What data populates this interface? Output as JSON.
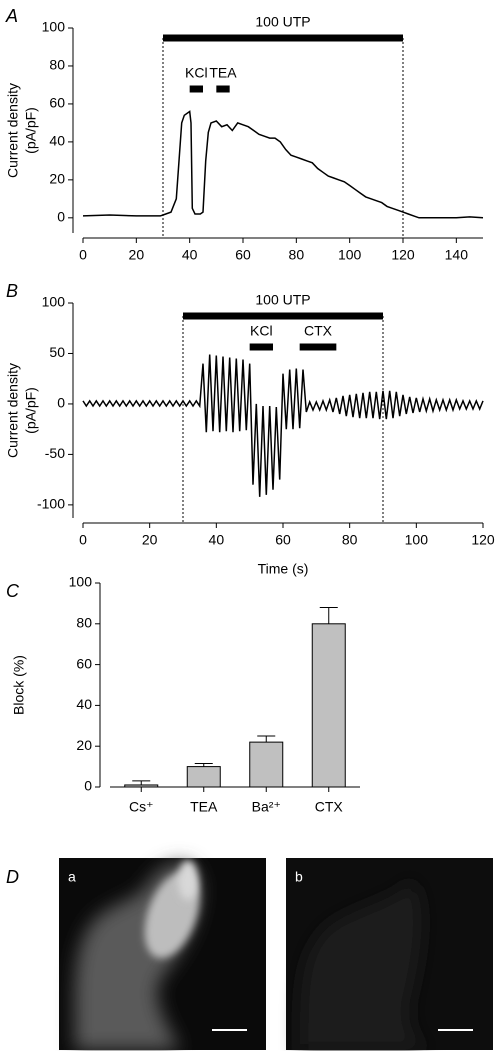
{
  "chart_data": [
    {
      "type": "line",
      "panel_label": "A",
      "ylabel": [
        "Current density",
        "(pA/pF)"
      ],
      "x": [
        0,
        10,
        20,
        29,
        30,
        33,
        35,
        36,
        37,
        38,
        40,
        40.5,
        41,
        42,
        44,
        45,
        46,
        47,
        48,
        50,
        52,
        54,
        56,
        58,
        60,
        62,
        64,
        66,
        68,
        70,
        72,
        74,
        76,
        78,
        80,
        82,
        84,
        86,
        88,
        90,
        92,
        94,
        96,
        98,
        100,
        102,
        104,
        106,
        108,
        110,
        112,
        114,
        116,
        118,
        120,
        122,
        124,
        126,
        130,
        135,
        140,
        145,
        150
      ],
      "values": [
        1,
        1.5,
        1,
        1,
        1.5,
        3,
        10,
        30,
        50,
        54,
        56,
        50,
        5,
        2,
        2,
        3,
        30,
        45,
        50,
        51,
        48,
        49,
        46,
        50,
        49,
        48,
        46,
        44,
        43,
        42,
        42,
        40,
        36,
        33,
        32,
        31,
        30,
        29,
        26,
        24,
        22,
        21,
        20,
        19,
        17,
        15,
        13,
        11,
        10,
        9,
        8,
        6,
        5,
        4,
        3,
        2,
        1,
        0,
        0,
        0,
        0,
        0.5,
        0
      ],
      "color": "#000000",
      "xlim": [
        0,
        150
      ],
      "xticks": [
        0,
        20,
        40,
        60,
        80,
        100,
        120,
        140
      ],
      "ylim": [
        -8,
        100
      ],
      "yticks": [
        0,
        20,
        40,
        60,
        80,
        100
      ],
      "stimuli": [
        {
          "label": "100 UTP",
          "start": 30,
          "end": 120
        },
        {
          "label": "KCl",
          "start": 40,
          "end": 45
        },
        {
          "label": "TEA",
          "start": 50,
          "end": 55
        }
      ]
    },
    {
      "type": "line",
      "panel_label": "B",
      "ylabel": [
        "Current density",
        "(pA/pF)"
      ],
      "xlabel": "Time (s)",
      "x": [
        0,
        1,
        2,
        3,
        4,
        5,
        6,
        7,
        8,
        9,
        10,
        11,
        12,
        13,
        14,
        15,
        16,
        17,
        18,
        19,
        20,
        21,
        22,
        23,
        24,
        25,
        26,
        27,
        28,
        29,
        30,
        31,
        32,
        33,
        34,
        35,
        36,
        37,
        38,
        39,
        40,
        41,
        42,
        43,
        44,
        45,
        46,
        47,
        48,
        49,
        50,
        51,
        52,
        53,
        54,
        55,
        56,
        57,
        58,
        59,
        60,
        61,
        62,
        63,
        64,
        65,
        66,
        67,
        68,
        69,
        70,
        71,
        72,
        73,
        74,
        75,
        76,
        77,
        78,
        79,
        80,
        81,
        82,
        83,
        84,
        85,
        86,
        87,
        88,
        89,
        90,
        91,
        92,
        93,
        94,
        95,
        96,
        97,
        98,
        99,
        100,
        101,
        102,
        103,
        104,
        105,
        106,
        107,
        108,
        109,
        110,
        111,
        112,
        113,
        114,
        115,
        116,
        117,
        118,
        119,
        120
      ],
      "values": [
        3,
        -2,
        3,
        -2,
        3,
        -2,
        3,
        -2,
        3,
        -2,
        3,
        -2,
        3,
        -2,
        3,
        -2,
        3,
        -2,
        3,
        -2,
        3,
        -2,
        3,
        -2,
        3,
        -2,
        3,
        -2,
        3,
        -2,
        3,
        -2,
        3,
        -2,
        3,
        -2,
        40,
        -28,
        49,
        -27,
        48,
        -28,
        47,
        -27,
        46,
        -28,
        45,
        -27,
        44,
        -26,
        40,
        -80,
        0,
        -92,
        -2,
        -90,
        -2,
        -85,
        -3,
        -75,
        30,
        -25,
        34,
        -25,
        35,
        -24,
        34,
        -8,
        2,
        -6,
        2,
        -6,
        3,
        -6,
        4,
        -8,
        6,
        -10,
        8,
        -12,
        9,
        -13,
        10,
        -14,
        11,
        -14,
        12,
        -14,
        12,
        -15,
        13,
        -15,
        13,
        -14,
        12,
        -12,
        9,
        -10,
        7,
        -9,
        6,
        -8,
        5,
        -7,
        5,
        -7,
        4,
        -6,
        4,
        -6,
        4,
        -6,
        4,
        -5,
        3,
        -5,
        3,
        -5,
        3,
        -5,
        3
      ],
      "color": "#000000",
      "xlim": [
        0,
        120
      ],
      "xticks": [
        0,
        20,
        40,
        60,
        80,
        100,
        120
      ],
      "ylim": [
        -113,
        100
      ],
      "yticks": [
        -100,
        -50,
        0,
        50,
        100
      ],
      "stimuli": [
        {
          "label": "100 UTP",
          "start": 30,
          "end": 90
        },
        {
          "label": "KCl",
          "start": 50,
          "end": 57
        },
        {
          "label": "CTX",
          "start": 65,
          "end": 76
        }
      ]
    },
    {
      "type": "bar",
      "panel_label": "C",
      "ylabel": [
        "Block (%)"
      ],
      "categories": [
        "Cs⁺",
        "TEA",
        "Ba²⁺",
        "CTX"
      ],
      "values": [
        1,
        10,
        22,
        80
      ],
      "errors": [
        2,
        1.5,
        3,
        8
      ],
      "color": "#c0c0c0",
      "ylim": [
        0,
        100
      ],
      "yticks": [
        0,
        20,
        40,
        60,
        80,
        100
      ]
    }
  ],
  "panel_d": {
    "label": "D",
    "images": [
      "a",
      "b"
    ]
  }
}
